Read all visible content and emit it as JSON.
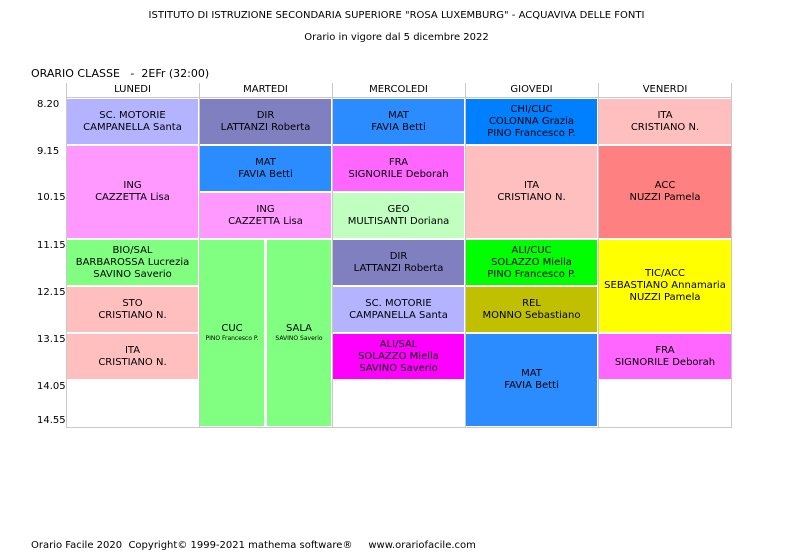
{
  "header": {
    "title": "ISTITUTO DI ISTRUZIONE SECONDARIA SUPERIORE \"ROSA LUXEMBURG\" - ACQUAVIVA DELLE FONTI",
    "subtitle": "Orario in vigore dal 5 dicembre 2022"
  },
  "class_label": "ORARIO CLASSE   -  2EFr (32:00)",
  "days": [
    "LUNEDI",
    "MARTEDI",
    "MERCOLEDI",
    "GIOVEDI",
    "VENERDI"
  ],
  "times": [
    "8.20",
    "9.15",
    "10.15",
    "11.15",
    "12.15",
    "13.15",
    "14.05",
    "14.55"
  ],
  "cells": {
    "mon_1": {
      "subject": "SC. MOTORIE",
      "teacher": "CAMPANELLA Santa",
      "color": "#b3b3ff"
    },
    "mon_2": {
      "subject": "ING",
      "teacher": "CAZZETTA Lisa",
      "color": "#ff99ff"
    },
    "mon_3": {
      "subject": "BIO/SAL",
      "teacher": "BARBAROSSA Lucrezia",
      "teacher2": "SAVINO Saverio",
      "color": "#80ff80"
    },
    "mon_4": {
      "subject": "STO",
      "teacher": "CRISTIANO N.",
      "color": "#ffbfbf"
    },
    "mon_5": {
      "subject": "ITA",
      "teacher": "CRISTIANO N.",
      "color": "#ffbfbf"
    },
    "tue_1": {
      "subject": "DIR",
      "teacher": "LATTANZI Roberta",
      "color": "#8080c0"
    },
    "tue_2": {
      "subject": "MAT",
      "teacher": "FAVIA Betti",
      "color": "#2b8cff"
    },
    "tue_3": {
      "subject": "ING",
      "teacher": "CAZZETTA Lisa",
      "color": "#ff99ff"
    },
    "tue_4a": {
      "subject": "CUC",
      "teacher": "PINO  Francesco P.",
      "color": "#80ff80"
    },
    "tue_4b": {
      "subject": "SALA",
      "teacher": "SAVINO Saverio",
      "color": "#80ff80"
    },
    "wed_1": {
      "subject": "MAT",
      "teacher": "FAVIA Betti",
      "color": "#2b8cff"
    },
    "wed_2": {
      "subject": "FRA",
      "teacher": "SIGNORILE Deborah",
      "color": "#ff66ff"
    },
    "wed_3": {
      "subject": "GEO",
      "teacher": "MULTISANTI Doriana",
      "color": "#c0ffc0"
    },
    "wed_4": {
      "subject": "DIR",
      "teacher": "LATTANZI Roberta",
      "color": "#8080c0"
    },
    "wed_5": {
      "subject": "SC. MOTORIE",
      "teacher": "CAMPANELLA Santa",
      "color": "#b3b3ff"
    },
    "wed_6": {
      "subject": "ALI/SAL",
      "teacher": "SOLAZZO Miella",
      "teacher2": "SAVINO Saverio",
      "color": "#ff00ff"
    },
    "thu_1": {
      "subject": "CHI/CUC",
      "teacher": "COLONNA Grazia",
      "teacher2": "PINO  Francesco P.",
      "color": "#0080ff"
    },
    "thu_2": {
      "subject": "ITA",
      "teacher": "CRISTIANO N.",
      "color": "#ffbfbf"
    },
    "thu_3": {
      "subject": "ALI/CUC",
      "teacher": "SOLAZZO Miella",
      "teacher2": "PINO  Francesco P.",
      "color": "#00ff00"
    },
    "thu_4": {
      "subject": "REL",
      "teacher": "MONNO Sebastiano",
      "color": "#c0c000"
    },
    "thu_5": {
      "subject": "MAT",
      "teacher": "FAVIA Betti",
      "color": "#2b8cff"
    },
    "fri_1": {
      "subject": "ITA",
      "teacher": "CRISTIANO N.",
      "color": "#ffbfbf"
    },
    "fri_2": {
      "subject": "ACC",
      "teacher": "NUZZI Pamela",
      "color": "#ff8080"
    },
    "fri_3": {
      "subject": "TIC/ACC",
      "teacher": "SEBASTIANO Annamaria",
      "teacher2": "NUZZI Pamela",
      "color": "#ffff00"
    },
    "fri_4": {
      "subject": "FRA",
      "teacher": "SIGNORILE Deborah",
      "color": "#ff66ff"
    }
  },
  "footer": "Orario Facile 2020  Copyright© 1999-2021 mathema software®     www.orariofacile.com"
}
